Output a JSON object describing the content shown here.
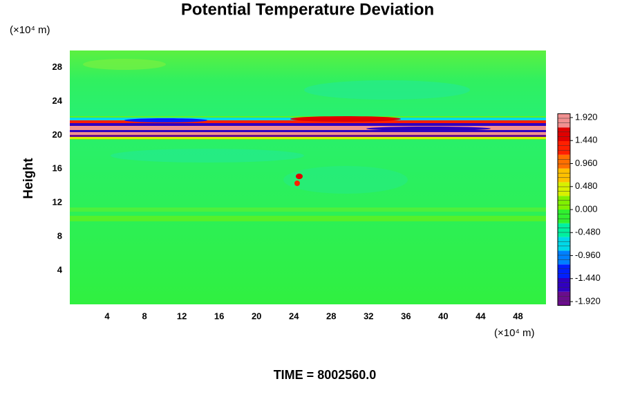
{
  "chart_data": {
    "type": "heatmap",
    "title": "Potential Temperature Deviation",
    "ylabel": "Height",
    "y_unit": "(×10⁴ m)",
    "x_unit": "(×10⁴ m)",
    "annotation": "TIME = 8002560.0",
    "xlim": [
      0,
      51
    ],
    "xticks": [
      4,
      8,
      12,
      16,
      20,
      24,
      28,
      32,
      36,
      40,
      44,
      48
    ],
    "ylim": [
      0,
      30
    ],
    "yticks": [
      4,
      8,
      12,
      16,
      20,
      24,
      28
    ],
    "clim": [
      -2,
      2
    ],
    "cticks": [
      {
        "value": 1.92,
        "label": "1.920"
      },
      {
        "value": 1.44,
        "label": "1.440"
      },
      {
        "value": 0.96,
        "label": "0.960"
      },
      {
        "value": 0.48,
        "label": "0.480"
      },
      {
        "value": 0,
        "label": "0.000"
      },
      {
        "value": -0.48,
        "label": "-0.480"
      },
      {
        "value": -0.96,
        "label": "-0.960"
      },
      {
        "value": -1.44,
        "label": "-1.440"
      },
      {
        "value": -1.92,
        "label": "-1.920"
      }
    ],
    "colormap": [
      "#6a0d8c",
      "#3000c0",
      "#0020ff",
      "#0080ff",
      "#00d8e8",
      "#00f0a0",
      "#30f030",
      "#80f000",
      "#d8f000",
      "#ffc000",
      "#ff7000",
      "#ff2000",
      "#e00000",
      "#f09090"
    ]
  }
}
